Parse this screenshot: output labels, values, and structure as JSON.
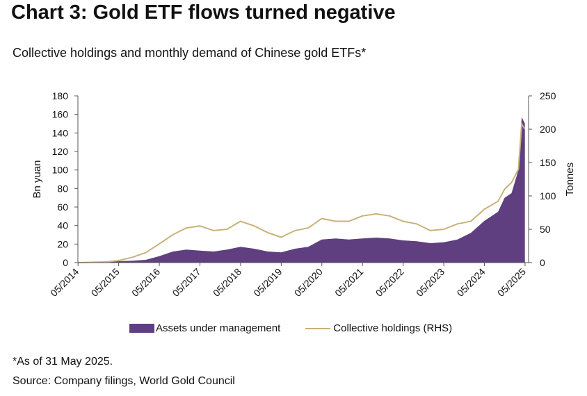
{
  "title": "Chart 3: Gold ETF flows turned negative",
  "subtitle": "Collective holdings and monthly demand of Chinese gold ETFs*",
  "note": "*As of 31 May 2025.",
  "source": "Source: Company filings, World Gold Council",
  "chart_data": {
    "type": "area",
    "x_ticks": [
      "05/2014",
      "05/2015",
      "05/2016",
      "05/2017",
      "05/2018",
      "05/2019",
      "05/2020",
      "05/2021",
      "05/2022",
      "05/2023",
      "05/2024",
      "05/2025"
    ],
    "ylabel_left": "Bn yuan",
    "ylabel_right": "Tonnes",
    "ylim_left": [
      0,
      180
    ],
    "ylim_right": [
      0,
      250
    ],
    "yticks_left": [
      0,
      20,
      40,
      60,
      80,
      100,
      120,
      140,
      160,
      180
    ],
    "yticks_right": [
      0,
      50,
      100,
      150,
      200,
      250
    ],
    "grid": false,
    "legend_position": "bottom",
    "colors": {
      "aum": "#5f3f7f",
      "holdings": "#c8b27a"
    },
    "series": [
      {
        "name": "Assets under management",
        "axis": "left",
        "type": "area",
        "points": [
          [
            2014.33,
            0.5
          ],
          [
            2015.0,
            1
          ],
          [
            2015.33,
            1.5
          ],
          [
            2015.67,
            2
          ],
          [
            2016.0,
            3
          ],
          [
            2016.33,
            7
          ],
          [
            2016.67,
            12
          ],
          [
            2017.0,
            14
          ],
          [
            2017.33,
            13
          ],
          [
            2017.67,
            12
          ],
          [
            2018.0,
            14
          ],
          [
            2018.33,
            17
          ],
          [
            2018.67,
            15
          ],
          [
            2019.0,
            12
          ],
          [
            2019.33,
            11
          ],
          [
            2019.67,
            15
          ],
          [
            2020.0,
            17
          ],
          [
            2020.33,
            25
          ],
          [
            2020.67,
            26
          ],
          [
            2021.0,
            25
          ],
          [
            2021.33,
            26
          ],
          [
            2021.67,
            27
          ],
          [
            2022.0,
            26
          ],
          [
            2022.33,
            24
          ],
          [
            2022.67,
            23
          ],
          [
            2023.0,
            21
          ],
          [
            2023.33,
            22
          ],
          [
            2023.67,
            25
          ],
          [
            2024.0,
            32
          ],
          [
            2024.33,
            45
          ],
          [
            2024.67,
            55
          ],
          [
            2024.83,
            70
          ],
          [
            2025.0,
            75
          ],
          [
            2025.17,
            100
          ],
          [
            2025.25,
            157
          ],
          [
            2025.33,
            150
          ]
        ]
      },
      {
        "name": "Collective holdings (RHS)",
        "axis": "right",
        "type": "line",
        "points": [
          [
            2014.33,
            0
          ],
          [
            2015.0,
            1
          ],
          [
            2015.33,
            3
          ],
          [
            2015.67,
            8
          ],
          [
            2016.0,
            15
          ],
          [
            2016.33,
            28
          ],
          [
            2016.67,
            42
          ],
          [
            2017.0,
            52
          ],
          [
            2017.33,
            55
          ],
          [
            2017.67,
            48
          ],
          [
            2018.0,
            50
          ],
          [
            2018.33,
            62
          ],
          [
            2018.67,
            55
          ],
          [
            2019.0,
            45
          ],
          [
            2019.33,
            38
          ],
          [
            2019.67,
            48
          ],
          [
            2020.0,
            52
          ],
          [
            2020.33,
            66
          ],
          [
            2020.67,
            62
          ],
          [
            2021.0,
            62
          ],
          [
            2021.33,
            70
          ],
          [
            2021.67,
            73
          ],
          [
            2022.0,
            70
          ],
          [
            2022.33,
            62
          ],
          [
            2022.67,
            58
          ],
          [
            2023.0,
            48
          ],
          [
            2023.33,
            50
          ],
          [
            2023.67,
            58
          ],
          [
            2024.0,
            62
          ],
          [
            2024.33,
            80
          ],
          [
            2024.67,
            92
          ],
          [
            2024.83,
            110
          ],
          [
            2025.0,
            120
          ],
          [
            2025.17,
            140
          ],
          [
            2025.25,
            208
          ],
          [
            2025.33,
            200
          ]
        ]
      }
    ]
  },
  "legend": [
    {
      "label": "Assets under management"
    },
    {
      "label": "Collective holdings (RHS)"
    }
  ]
}
